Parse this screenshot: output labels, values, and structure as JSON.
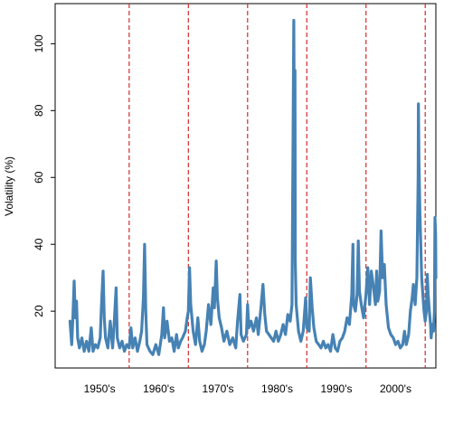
{
  "chart_data": {
    "type": "line",
    "title": "",
    "xlabel": "",
    "ylabel": "Volatility (%)",
    "ylim": [
      3,
      112
    ],
    "xlim": [
      1947.5,
      2011.8
    ],
    "yticks": [
      20,
      40,
      60,
      80,
      100
    ],
    "decade_labels": [
      {
        "label": "1950's",
        "x": 1955
      },
      {
        "label": "1960's",
        "x": 1965
      },
      {
        "label": "1970's",
        "x": 1975
      },
      {
        "label": "1980's",
        "x": 1985
      },
      {
        "label": "1990's",
        "x": 1995
      },
      {
        "label": "2000's",
        "x": 2005
      }
    ],
    "decade_lines": [
      1960,
      1970,
      1980,
      1990,
      2000,
      2010
    ],
    "grid": false,
    "legend": "none",
    "colors": {
      "series": "#4682b4",
      "decade_lines": "#d22b2b"
    },
    "series": [
      {
        "values": [
          [
            1950.0,
            17
          ],
          [
            1950.3,
            10
          ],
          [
            1950.5,
            18
          ],
          [
            1950.7,
            29
          ],
          [
            1950.9,
            18
          ],
          [
            1951.1,
            23
          ],
          [
            1951.3,
            12
          ],
          [
            1951.6,
            9
          ],
          [
            1952.0,
            12
          ],
          [
            1952.4,
            8
          ],
          [
            1952.8,
            11
          ],
          [
            1953.2,
            8
          ],
          [
            1953.6,
            15
          ],
          [
            1953.9,
            8
          ],
          [
            1954.3,
            10
          ],
          [
            1954.7,
            9
          ],
          [
            1955.1,
            12
          ],
          [
            1955.3,
            21
          ],
          [
            1955.6,
            32
          ],
          [
            1955.8,
            18
          ],
          [
            1956.0,
            12
          ],
          [
            1956.4,
            9
          ],
          [
            1956.8,
            17
          ],
          [
            1957.2,
            9
          ],
          [
            1957.4,
            14
          ],
          [
            1957.8,
            27
          ],
          [
            1958.0,
            12
          ],
          [
            1958.4,
            9
          ],
          [
            1958.8,
            11
          ],
          [
            1959.2,
            8
          ],
          [
            1959.6,
            10
          ],
          [
            1960.0,
            9
          ],
          [
            1960.3,
            15
          ],
          [
            1960.6,
            9
          ],
          [
            1961.0,
            12
          ],
          [
            1961.4,
            8
          ],
          [
            1961.8,
            11
          ],
          [
            1962.1,
            14
          ],
          [
            1962.4,
            24
          ],
          [
            1962.6,
            40
          ],
          [
            1962.8,
            20
          ],
          [
            1963.0,
            10
          ],
          [
            1963.5,
            8
          ],
          [
            1964.0,
            7
          ],
          [
            1964.5,
            10
          ],
          [
            1965.0,
            7
          ],
          [
            1965.5,
            13
          ],
          [
            1965.8,
            21
          ],
          [
            1966.0,
            12
          ],
          [
            1966.4,
            17
          ],
          [
            1966.8,
            11
          ],
          [
            1967.2,
            12
          ],
          [
            1967.6,
            8
          ],
          [
            1968.0,
            13
          ],
          [
            1968.3,
            9
          ],
          [
            1968.7,
            11
          ],
          [
            1969.0,
            12
          ],
          [
            1969.5,
            14
          ],
          [
            1969.8,
            18
          ],
          [
            1970.0,
            20
          ],
          [
            1970.2,
            33
          ],
          [
            1970.4,
            22
          ],
          [
            1970.8,
            14
          ],
          [
            1971.2,
            10
          ],
          [
            1971.6,
            18
          ],
          [
            1971.9,
            11
          ],
          [
            1972.3,
            8
          ],
          [
            1972.7,
            10
          ],
          [
            1973.0,
            14
          ],
          [
            1973.4,
            22
          ],
          [
            1973.8,
            16
          ],
          [
            1974.2,
            27
          ],
          [
            1974.4,
            21
          ],
          [
            1974.7,
            35
          ],
          [
            1974.9,
            24
          ],
          [
            1975.2,
            18
          ],
          [
            1975.6,
            15
          ],
          [
            1976.0,
            11
          ],
          [
            1976.5,
            14
          ],
          [
            1977.0,
            10
          ],
          [
            1977.5,
            12
          ],
          [
            1978.0,
            9
          ],
          [
            1978.3,
            17
          ],
          [
            1978.7,
            25
          ],
          [
            1978.9,
            13
          ],
          [
            1979.3,
            11
          ],
          [
            1979.8,
            13
          ],
          [
            1980.0,
            22
          ],
          [
            1980.2,
            15
          ],
          [
            1980.6,
            17
          ],
          [
            1981.0,
            14
          ],
          [
            1981.5,
            18
          ],
          [
            1981.8,
            13
          ],
          [
            1982.2,
            20
          ],
          [
            1982.6,
            28
          ],
          [
            1982.9,
            19
          ],
          [
            1983.2,
            14
          ],
          [
            1983.6,
            13
          ],
          [
            1984.0,
            12
          ],
          [
            1984.4,
            11
          ],
          [
            1984.8,
            14
          ],
          [
            1985.2,
            11
          ],
          [
            1985.6,
            13
          ],
          [
            1986.0,
            16
          ],
          [
            1986.4,
            13
          ],
          [
            1986.8,
            19
          ],
          [
            1987.2,
            17
          ],
          [
            1987.5,
            22
          ],
          [
            1987.8,
            107
          ],
          [
            1987.95,
            50
          ],
          [
            1988.0,
            92
          ],
          [
            1988.05,
            35
          ],
          [
            1988.2,
            22
          ],
          [
            1988.6,
            14
          ],
          [
            1989.0,
            11
          ],
          [
            1989.4,
            14
          ],
          [
            1989.8,
            24
          ],
          [
            1990.0,
            15
          ],
          [
            1990.4,
            14
          ],
          [
            1990.6,
            30
          ],
          [
            1990.9,
            21
          ],
          [
            1991.2,
            15
          ],
          [
            1991.6,
            11
          ],
          [
            1992.0,
            10
          ],
          [
            1992.4,
            9
          ],
          [
            1992.8,
            11
          ],
          [
            1993.2,
            9
          ],
          [
            1993.6,
            10
          ],
          [
            1994.0,
            8
          ],
          [
            1994.4,
            13
          ],
          [
            1994.8,
            9
          ],
          [
            1995.2,
            8
          ],
          [
            1995.6,
            11
          ],
          [
            1996.0,
            12
          ],
          [
            1996.4,
            14
          ],
          [
            1996.8,
            18
          ],
          [
            1997.2,
            16
          ],
          [
            1997.6,
            25
          ],
          [
            1997.8,
            40
          ],
          [
            1997.9,
            22
          ],
          [
            1998.2,
            20
          ],
          [
            1998.5,
            25
          ],
          [
            1998.7,
            41
          ],
          [
            1998.9,
            26
          ],
          [
            1999.2,
            22
          ],
          [
            1999.6,
            18
          ],
          [
            2000.0,
            25
          ],
          [
            2000.3,
            33
          ],
          [
            2000.6,
            22
          ],
          [
            2000.9,
            32
          ],
          [
            2001.2,
            28
          ],
          [
            2001.6,
            22
          ],
          [
            2001.8,
            32
          ],
          [
            2002.0,
            23
          ],
          [
            2002.3,
            26
          ],
          [
            2002.55,
            44
          ],
          [
            2002.8,
            30
          ],
          [
            2003.1,
            34
          ],
          [
            2003.4,
            22
          ],
          [
            2003.8,
            15
          ],
          [
            2004.2,
            13
          ],
          [
            2004.6,
            12
          ],
          [
            2005.0,
            10
          ],
          [
            2005.4,
            11
          ],
          [
            2005.8,
            9
          ],
          [
            2006.2,
            10
          ],
          [
            2006.5,
            14
          ],
          [
            2006.8,
            10
          ],
          [
            2007.2,
            13
          ],
          [
            2007.5,
            20
          ],
          [
            2007.8,
            24
          ],
          [
            2008.0,
            28
          ],
          [
            2008.3,
            22
          ],
          [
            2008.6,
            30
          ],
          [
            2008.8,
            60
          ],
          [
            2008.85,
            82
          ],
          [
            2008.95,
            65
          ],
          [
            2009.1,
            50
          ],
          [
            2009.25,
            40
          ],
          [
            2009.4,
            30
          ],
          [
            2009.6,
            25
          ],
          [
            2009.8,
            20
          ],
          [
            2010.0,
            17
          ],
          [
            2010.2,
            20
          ],
          [
            2010.35,
            31
          ],
          [
            2010.5,
            25
          ],
          [
            2010.7,
            20
          ],
          [
            2010.9,
            16
          ],
          [
            2011.0,
            12
          ],
          [
            2011.2,
            16
          ],
          [
            2011.4,
            14
          ],
          [
            2011.55,
            20
          ],
          [
            2011.65,
            48
          ],
          [
            2011.75,
            43
          ],
          [
            2011.8,
            30
          ]
        ]
      }
    ]
  }
}
